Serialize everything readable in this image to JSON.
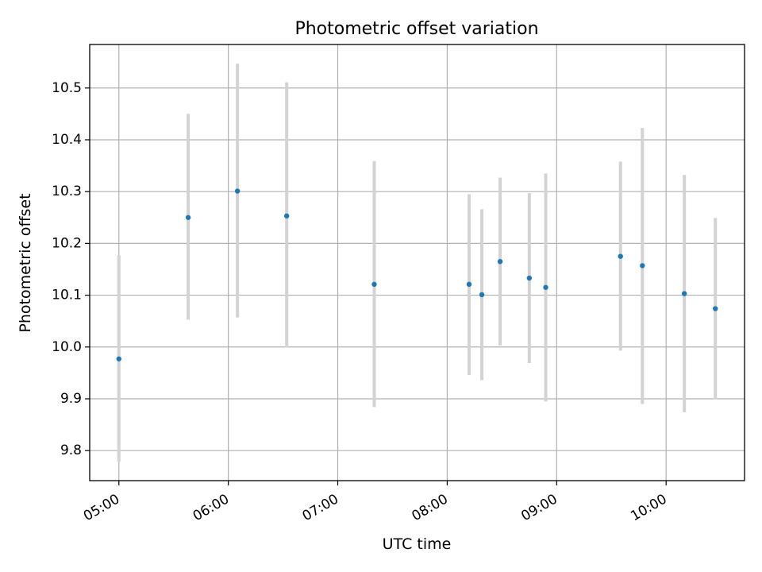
{
  "chart_data": {
    "type": "scatter",
    "title": "Photometric offset variation",
    "xlabel": "UTC time",
    "ylabel": "Photometric offset",
    "x_ticks": [
      "05:00",
      "06:00",
      "07:00",
      "08:00",
      "09:00",
      "10:00"
    ],
    "y_ticks": [
      "9.8",
      "9.9",
      "10.0",
      "10.1",
      "10.2",
      "10.3",
      "10.4",
      "10.5"
    ],
    "xlim": [
      "04:44",
      "10:43"
    ],
    "ylim": [
      9.742,
      10.584
    ],
    "grid": true,
    "colors": {
      "point": "#1f77b4",
      "errorbar": "#d3d3d3",
      "grid": "#b0b0b0"
    },
    "points": [
      {
        "x": "05:00",
        "y": 9.977,
        "y_low": 9.778,
        "y_high": 10.177
      },
      {
        "x": "05:38",
        "y": 10.25,
        "y_low": 10.053,
        "y_high": 10.45
      },
      {
        "x": "06:05",
        "y": 10.301,
        "y_low": 10.057,
        "y_high": 10.547
      },
      {
        "x": "06:32",
        "y": 10.253,
        "y_low": 9.999,
        "y_high": 10.511
      },
      {
        "x": "07:20",
        "y": 10.121,
        "y_low": 9.884,
        "y_high": 10.359
      },
      {
        "x": "08:12",
        "y": 10.121,
        "y_low": 9.946,
        "y_high": 10.295
      },
      {
        "x": "08:19",
        "y": 10.101,
        "y_low": 9.936,
        "y_high": 10.266
      },
      {
        "x": "08:29",
        "y": 10.165,
        "y_low": 10.003,
        "y_high": 10.327
      },
      {
        "x": "08:45",
        "y": 10.133,
        "y_low": 9.969,
        "y_high": 10.297
      },
      {
        "x": "08:54",
        "y": 10.115,
        "y_low": 9.895,
        "y_high": 10.335
      },
      {
        "x": "09:35",
        "y": 10.175,
        "y_low": 9.993,
        "y_high": 10.358
      },
      {
        "x": "09:47",
        "y": 10.157,
        "y_low": 9.89,
        "y_high": 10.423
      },
      {
        "x": "10:10",
        "y": 10.103,
        "y_low": 9.874,
        "y_high": 10.332
      },
      {
        "x": "10:27",
        "y": 10.074,
        "y_low": 9.899,
        "y_high": 10.249
      }
    ]
  }
}
